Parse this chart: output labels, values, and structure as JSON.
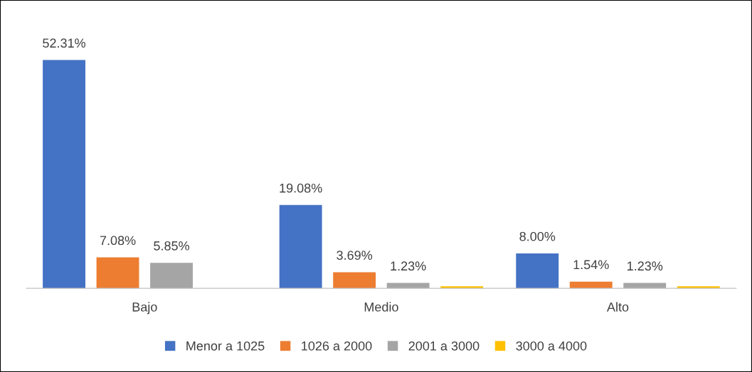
{
  "chart_data": {
    "type": "bar",
    "categories": [
      "Bajo",
      "Medio",
      "Alto"
    ],
    "series": [
      {
        "name": "Menor a 1025",
        "color": "#4472c4",
        "values": [
          52.31,
          19.08,
          8.0
        ],
        "value_labels": [
          "52.31%",
          "19.08%",
          "8.00%"
        ]
      },
      {
        "name": "1026 a 2000",
        "color": "#ed7d31",
        "values": [
          7.08,
          3.69,
          1.54
        ],
        "value_labels": [
          "7.08%",
          "3.69%",
          "1.54%"
        ]
      },
      {
        "name": "2001 a 3000",
        "color": "#a5a5a5",
        "values": [
          5.85,
          1.23,
          1.23
        ],
        "value_labels": [
          "5.85%",
          "1.23%",
          "1.23%"
        ]
      },
      {
        "name": "3000 a 4000",
        "color": "#ffc000",
        "values": [
          null,
          0.46,
          0.46
        ],
        "value_labels": [
          null,
          null,
          null
        ]
      }
    ],
    "legend": "bottom",
    "grid": false
  }
}
